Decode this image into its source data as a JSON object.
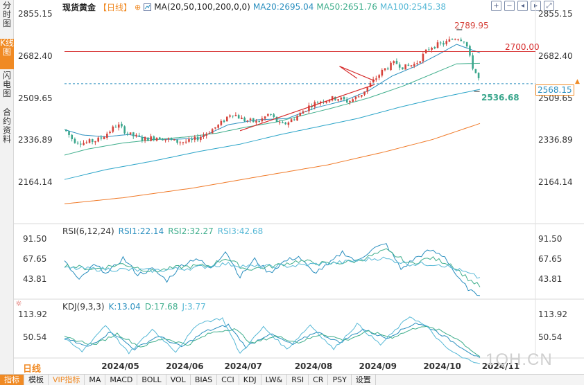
{
  "left_tabs": [
    {
      "label": "分时图",
      "active": false
    },
    {
      "label": "K线图",
      "active": true
    },
    {
      "label": "闪电图",
      "active": false
    },
    {
      "label": "合约资料",
      "active": false
    }
  ],
  "header": {
    "title": "现货黄金",
    "period": "【日线】",
    "ma_params": "MA(20,50,100,200,0,0)",
    "ma20": "MA20:2695.04",
    "ma50": "MA50:2651.76",
    "ma100": "MA100:2545.38"
  },
  "toolbar_icons": [
    "plus-square-icon",
    "minus-square-icon",
    "arrow-left-icon",
    "arrow-right-icon",
    "expand-icon"
  ],
  "colors": {
    "up": "#d6433b",
    "down": "#3aa68c",
    "ma20": "#2a8fbf",
    "ma50": "#3fae8c",
    "ma100": "#2aa4c8",
    "ma200": "#f07a28",
    "resistance": "#d62b2b",
    "current": "#2a8fbf",
    "accent": "#f08a24"
  },
  "chart_data": [
    {
      "type": "candlestick",
      "title": "现货黄金 日线",
      "y_ticks": [
        "2855.15",
        "2682.40",
        "2509.65",
        "2336.89",
        "2164.14"
      ],
      "ylim": [
        2075,
        2890
      ],
      "x_ticks": [
        "2024/05",
        "2024/06",
        "2024/07",
        "2024/08",
        "2024/09",
        "2024/10",
        "2024/11"
      ],
      "x_tick_index": [
        6,
        28,
        48,
        72,
        94,
        116,
        136
      ],
      "n_bars": 142,
      "annotations": {
        "high": "2789.95",
        "low": "2536.68",
        "resistance_value": 2700,
        "resistance_label": "2700.00",
        "current_value": 2568.15,
        "current_label": "2568.15"
      },
      "anchors": [
        [
          0,
          2380
        ],
        [
          3,
          2335
        ],
        [
          7,
          2325
        ],
        [
          12,
          2340
        ],
        [
          18,
          2400
        ],
        [
          22,
          2360
        ],
        [
          27,
          2340
        ],
        [
          32,
          2350
        ],
        [
          38,
          2330
        ],
        [
          43,
          2330
        ],
        [
          47,
          2355
        ],
        [
          53,
          2400
        ],
        [
          57,
          2450
        ],
        [
          61,
          2420
        ],
        [
          66,
          2410
        ],
        [
          70,
          2445
        ],
        [
          74,
          2395
        ],
        [
          79,
          2430
        ],
        [
          84,
          2480
        ],
        [
          88,
          2500
        ],
        [
          93,
          2510
        ],
        [
          97,
          2495
        ],
        [
          101,
          2520
        ],
        [
          104,
          2560
        ],
        [
          109,
          2625
        ],
        [
          113,
          2655
        ],
        [
          116,
          2635
        ],
        [
          120,
          2650
        ],
        [
          125,
          2720
        ],
        [
          130,
          2735
        ],
        [
          134,
          2760
        ],
        [
          137,
          2745
        ],
        [
          139,
          2650
        ],
        [
          142,
          2575
        ]
      ],
      "ma_series": [
        {
          "name": "MA20",
          "start": 0,
          "anchors": [
            [
              0,
              2380
            ],
            [
              6,
              2358
            ],
            [
              14,
              2350
            ],
            [
              22,
              2360
            ],
            [
              30,
              2340
            ],
            [
              38,
              2340
            ],
            [
              46,
              2345
            ],
            [
              56,
              2400
            ],
            [
              66,
              2420
            ],
            [
              76,
              2425
            ],
            [
              86,
              2470
            ],
            [
              96,
              2500
            ],
            [
              104,
              2540
            ],
            [
              112,
              2600
            ],
            [
              120,
              2640
            ],
            [
              128,
              2690
            ],
            [
              134,
              2730
            ],
            [
              142,
              2695
            ]
          ]
        },
        {
          "name": "MA50",
          "start": 0,
          "anchors": [
            [
              0,
              2275
            ],
            [
              8,
              2300
            ],
            [
              20,
              2325
            ],
            [
              32,
              2340
            ],
            [
              42,
              2350
            ],
            [
              52,
              2365
            ],
            [
              62,
              2390
            ],
            [
              72,
              2410
            ],
            [
              82,
              2440
            ],
            [
              92,
              2470
            ],
            [
              104,
              2510
            ],
            [
              116,
              2560
            ],
            [
              126,
              2610
            ],
            [
              134,
              2650
            ],
            [
              142,
              2652
            ]
          ]
        },
        {
          "name": "MA100",
          "start": 0,
          "anchors": [
            [
              0,
              2175
            ],
            [
              14,
              2215
            ],
            [
              30,
              2250
            ],
            [
              46,
              2290
            ],
            [
              60,
              2320
            ],
            [
              74,
              2360
            ],
            [
              88,
              2395
            ],
            [
              100,
              2425
            ],
            [
              114,
              2470
            ],
            [
              128,
              2510
            ],
            [
              142,
              2545
            ]
          ]
        },
        {
          "name": "MA200",
          "start": 0,
          "anchors": [
            [
              0,
              2075
            ],
            [
              20,
              2100
            ],
            [
              44,
              2140
            ],
            [
              68,
              2190
            ],
            [
              90,
              2235
            ],
            [
              110,
              2290
            ],
            [
              126,
              2340
            ],
            [
              142,
              2405
            ]
          ]
        }
      ],
      "trend_lines": [
        {
          "from": [
            60,
            2375
          ],
          "to": [
            106,
            2565
          ]
        },
        {
          "from": [
            94,
            2640
          ],
          "to": [
            106,
            2580
          ]
        },
        {
          "from": [
            94,
            2640
          ],
          "to": [
            100,
            2590
          ]
        }
      ]
    },
    {
      "type": "line",
      "title": "RSI(6,12,24)",
      "legend": [
        "RSI1:22.14",
        "RSI2:32.27",
        "RSI3:42.68"
      ],
      "y_ticks": [
        "91.50",
        "67.65",
        "43.81"
      ],
      "ylim": [
        15,
        100
      ],
      "series": [
        {
          "name": "RSI1",
          "anchors": [
            [
              0,
              65
            ],
            [
              5,
              40
            ],
            [
              10,
              60
            ],
            [
              15,
              50
            ],
            [
              20,
              70
            ],
            [
              25,
              48
            ],
            [
              30,
              55
            ],
            [
              35,
              40
            ],
            [
              40,
              60
            ],
            [
              45,
              70
            ],
            [
              50,
              55
            ],
            [
              55,
              80
            ],
            [
              60,
              45
            ],
            [
              65,
              68
            ],
            [
              70,
              50
            ],
            [
              75,
              65
            ],
            [
              80,
              72
            ],
            [
              85,
              50
            ],
            [
              90,
              60
            ],
            [
              95,
              78
            ],
            [
              100,
              65
            ],
            [
              105,
              82
            ],
            [
              110,
              88
            ],
            [
              115,
              55
            ],
            [
              120,
              70
            ],
            [
              125,
              80
            ],
            [
              130,
              72
            ],
            [
              135,
              40
            ],
            [
              140,
              22
            ],
            [
              142,
              22
            ]
          ]
        },
        {
          "name": "RSI2",
          "anchors": [
            [
              0,
              60
            ],
            [
              10,
              55
            ],
            [
              20,
              62
            ],
            [
              30,
              52
            ],
            [
              40,
              58
            ],
            [
              50,
              60
            ],
            [
              55,
              70
            ],
            [
              62,
              55
            ],
            [
              70,
              58
            ],
            [
              80,
              66
            ],
            [
              90,
              62
            ],
            [
              100,
              66
            ],
            [
              110,
              80
            ],
            [
              118,
              62
            ],
            [
              125,
              70
            ],
            [
              132,
              62
            ],
            [
              138,
              42
            ],
            [
              142,
              32
            ]
          ]
        },
        {
          "name": "RSI3",
          "anchors": [
            [
              0,
              56
            ],
            [
              15,
              55
            ],
            [
              30,
              53
            ],
            [
              45,
              57
            ],
            [
              55,
              62
            ],
            [
              65,
              58
            ],
            [
              80,
              60
            ],
            [
              95,
              64
            ],
            [
              108,
              70
            ],
            [
              118,
              62
            ],
            [
              128,
              62
            ],
            [
              136,
              52
            ],
            [
              142,
              43
            ]
          ]
        }
      ]
    },
    {
      "type": "line",
      "title": "KDJ(9,3,3)",
      "legend": [
        "K:13.04",
        "D:17.68",
        "J:3.77"
      ],
      "y_ticks": [
        "113.92",
        "50.54"
      ],
      "ylim": [
        15,
        125
      ],
      "series": [
        {
          "name": "K",
          "anchors": [
            [
              0,
              60
            ],
            [
              8,
              40
            ],
            [
              16,
              75
            ],
            [
              24,
              35
            ],
            [
              32,
              65
            ],
            [
              40,
              40
            ],
            [
              48,
              75
            ],
            [
              56,
              90
            ],
            [
              62,
              40
            ],
            [
              70,
              70
            ],
            [
              78,
              45
            ],
            [
              86,
              75
            ],
            [
              94,
              50
            ],
            [
              102,
              80
            ],
            [
              110,
              60
            ],
            [
              120,
              95
            ],
            [
              126,
              80
            ],
            [
              132,
              55
            ],
            [
              138,
              30
            ],
            [
              142,
              13
            ]
          ]
        },
        {
          "name": "D",
          "anchors": [
            [
              0,
              62
            ],
            [
              10,
              45
            ],
            [
              18,
              70
            ],
            [
              26,
              40
            ],
            [
              34,
              60
            ],
            [
              42,
              45
            ],
            [
              50,
              72
            ],
            [
              58,
              82
            ],
            [
              64,
              48
            ],
            [
              72,
              65
            ],
            [
              80,
              50
            ],
            [
              88,
              70
            ],
            [
              96,
              55
            ],
            [
              104,
              75
            ],
            [
              112,
              62
            ],
            [
              122,
              88
            ],
            [
              128,
              78
            ],
            [
              134,
              60
            ],
            [
              140,
              28
            ],
            [
              142,
              18
            ]
          ]
        },
        {
          "name": "J",
          "anchors": [
            [
              0,
              58
            ],
            [
              6,
              30
            ],
            [
              14,
              90
            ],
            [
              22,
              25
            ],
            [
              30,
              80
            ],
            [
              38,
              30
            ],
            [
              46,
              95
            ],
            [
              54,
              105
            ],
            [
              60,
              25
            ],
            [
              68,
              85
            ],
            [
              76,
              35
            ],
            [
              84,
              90
            ],
            [
              92,
              35
            ],
            [
              100,
              92
            ],
            [
              108,
              45
            ],
            [
              118,
              110
            ],
            [
              124,
              85
            ],
            [
              130,
              40
            ],
            [
              136,
              15
            ],
            [
              142,
              4
            ]
          ]
        }
      ]
    }
  ],
  "main_axis_extra": [],
  "rsi": {
    "title": "RSI(6,12,24)",
    "v1": "RSI1:22.14",
    "v2": "RSI2:32.27",
    "v3": "RSI3:42.68"
  },
  "kdj": {
    "title": "KDJ(9,3,3)",
    "k": "K:13.04",
    "d": "D:17.68",
    "j": "J:3.77"
  },
  "period_label": "日线",
  "bottom_tabs": [
    {
      "label": "指标",
      "active": true,
      "vip": false
    },
    {
      "label": "模板",
      "active": false,
      "vip": false
    },
    {
      "label": "VIP指标",
      "active": false,
      "vip": true
    },
    {
      "label": "MA",
      "active": false,
      "vip": false
    },
    {
      "label": "MACD",
      "active": false,
      "vip": false
    },
    {
      "label": "BOLL",
      "active": false,
      "vip": false
    },
    {
      "label": "VOL",
      "active": false,
      "vip": false
    },
    {
      "label": "BIAS",
      "active": false,
      "vip": false
    },
    {
      "label": "CCI",
      "active": false,
      "vip": false
    },
    {
      "label": "KDJ",
      "active": false,
      "vip": false
    },
    {
      "label": "LW&",
      "active": false,
      "vip": false
    },
    {
      "label": "RSI",
      "active": false,
      "vip": false
    },
    {
      "label": "CR",
      "active": false,
      "vip": false
    },
    {
      "label": "PSY",
      "active": false,
      "vip": false
    },
    {
      "label": "设置",
      "active": false,
      "vip": false
    }
  ],
  "watermark": "1QH.CN"
}
